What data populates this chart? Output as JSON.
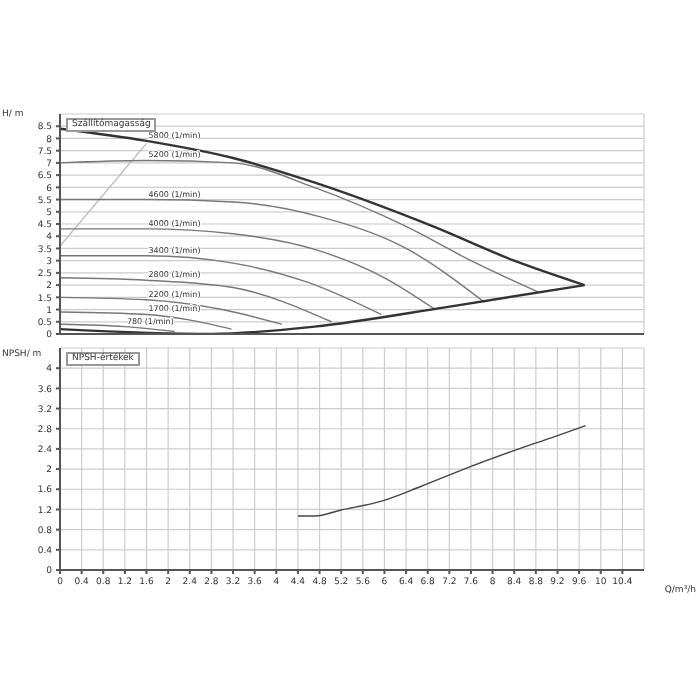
{
  "chart_data": [
    {
      "type": "line",
      "title": "Szállítómagasság",
      "ylabel": "H/ m",
      "xlim": [
        0,
        10.8
      ],
      "xticks": [
        0,
        0.4,
        0.8,
        1.2,
        1.6,
        2,
        2.4,
        2.8,
        3.2,
        3.6,
        4,
        4.4,
        4.8,
        5.2,
        5.6,
        6,
        6.4,
        6.8,
        7.2,
        7.6,
        8,
        8.4,
        8.8,
        9.2,
        9.6,
        10,
        10.4
      ],
      "ylim": [
        0,
        9
      ],
      "yticks": [
        0,
        0.5,
        1,
        1.5,
        2,
        2.5,
        3,
        3.5,
        4,
        4.5,
        5,
        5.5,
        6,
        6.5,
        7,
        7.5,
        8,
        8.5
      ],
      "grid": true,
      "marker": "none",
      "line_style": "solid",
      "tick_labels": "y",
      "series": [
        {
          "color": "#bbbbbb",
          "x": [
            0,
            1.6
          ],
          "values": [
            3.6,
            7.8
          ]
        },
        {
          "name": "5800 (1/min)",
          "color": "#333333",
          "x": [
            0,
            1.6,
            3.2,
            4.7,
            6.9,
            8.4,
            9.7
          ],
          "values": [
            8.4,
            7.9,
            7.2,
            6.2,
            4.4,
            3.0,
            2.0
          ]
        },
        {
          "name": "5200 (1/min)",
          "color": "#777777",
          "x": [
            0,
            1.6,
            3.2,
            4.7,
            6.4,
            7.6,
            8.86
          ],
          "values": [
            7.0,
            7.1,
            7.0,
            6.0,
            4.4,
            3.0,
            1.7
          ]
        },
        {
          "name": "4600 (1/min)",
          "color": "#777777",
          "x": [
            0,
            1.6,
            3.2,
            4.8,
            6.4,
            7.85
          ],
          "values": [
            5.5,
            5.5,
            5.4,
            4.8,
            3.5,
            1.3
          ]
        },
        {
          "name": "4000 (1/min)",
          "color": "#777777",
          "x": [
            0,
            1.6,
            3.2,
            4.8,
            6.0,
            6.94
          ],
          "values": [
            4.3,
            4.3,
            4.1,
            3.4,
            2.3,
            1.0
          ]
        },
        {
          "name": "3400 (1/min)",
          "color": "#777777",
          "x": [
            0,
            1.6,
            3.2,
            4.6,
            5.94
          ],
          "values": [
            3.2,
            3.2,
            2.9,
            2.1,
            0.8
          ]
        },
        {
          "name": "2800 (1/min)",
          "color": "#777777",
          "x": [
            0,
            1.6,
            3.2,
            5.02
          ],
          "values": [
            2.3,
            2.2,
            1.9,
            0.5
          ]
        },
        {
          "name": "2200 (1/min)",
          "color": "#777777",
          "x": [
            0,
            1.6,
            3.0,
            4.1
          ],
          "values": [
            1.5,
            1.4,
            1.0,
            0.4
          ]
        },
        {
          "name": "1700 (1/min)",
          "color": "#777777",
          "x": [
            0,
            1.6,
            3.17
          ],
          "values": [
            0.9,
            0.8,
            0.2
          ]
        },
        {
          "name": "780 (1/min)",
          "color": "#777777",
          "x": [
            0,
            1.2,
            2.12
          ],
          "values": [
            0.4,
            0.3,
            0.1
          ]
        },
        {
          "color": "#333333",
          "x": [
            0,
            2.8,
            4.7,
            7.15,
            9.7
          ],
          "values": [
            0.2,
            0.0,
            0.3,
            1.1,
            2.0
          ]
        }
      ]
    },
    {
      "type": "line",
      "title": "NPSH-értékek",
      "xlabel": "Q/m³/h",
      "ylabel": "NPSH/ m",
      "xlim": [
        0,
        10.8
      ],
      "xticks": [
        0,
        0.4,
        0.8,
        1.2,
        1.6,
        2,
        2.4,
        2.8,
        3.2,
        3.6,
        4,
        4.4,
        4.8,
        5.2,
        5.6,
        6,
        6.4,
        6.8,
        7.2,
        7.6,
        8,
        8.4,
        8.8,
        9.2,
        9.6,
        10,
        10.4
      ],
      "ylim": [
        0,
        4.4
      ],
      "yticks": [
        0,
        0.4,
        0.8,
        1.2,
        1.6,
        2,
        2.4,
        2.8,
        3.2,
        3.6,
        4
      ],
      "grid": true,
      "marker": "none",
      "line_style": "solid",
      "series": [
        {
          "color": "#444444",
          "x": [
            4.4,
            4.71,
            5.2,
            5.93,
            6.66,
            7.4,
            8.38,
            9.11,
            9.72
          ],
          "values": [
            1.07,
            1.07,
            1.19,
            1.36,
            1.65,
            1.97,
            2.36,
            2.63,
            2.86
          ]
        }
      ]
    }
  ]
}
